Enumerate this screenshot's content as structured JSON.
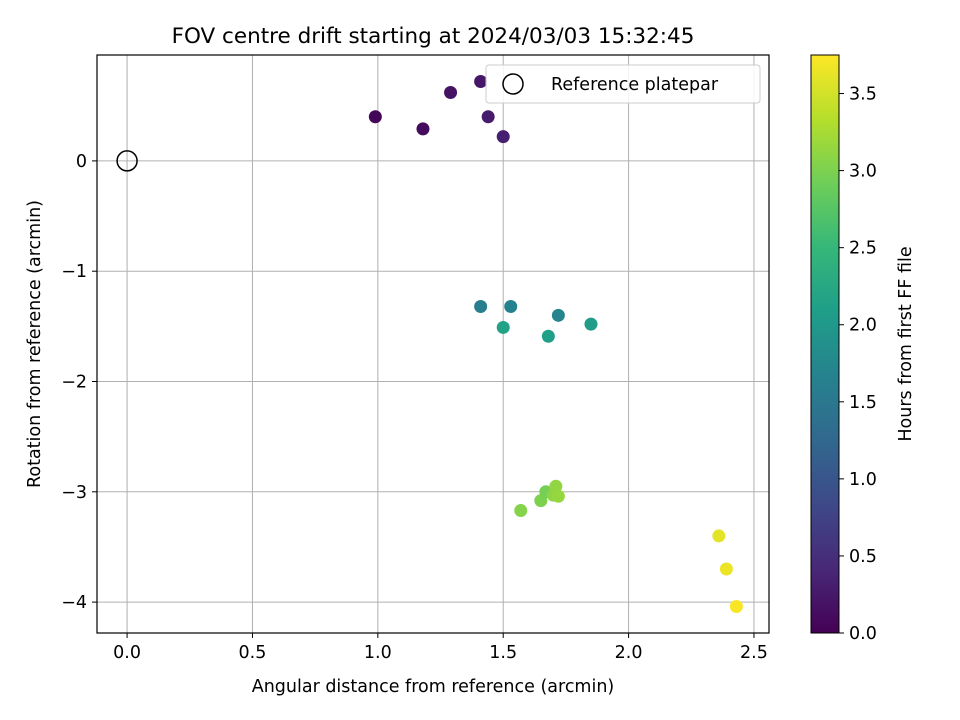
{
  "chart_data": {
    "type": "scatter",
    "title": "FOV centre drift starting at 2024/03/03 15:32:45",
    "xlabel": "Angular distance from reference (arcmin)",
    "ylabel": "Rotation from reference (arcmin)",
    "xlim": [
      -0.12,
      2.56
    ],
    "ylim": [
      -4.28,
      0.96
    ],
    "xticks": [
      0.0,
      0.5,
      1.0,
      1.5,
      2.0,
      2.5
    ],
    "xtick_labels": [
      "0.0",
      "0.5",
      "1.0",
      "1.5",
      "2.0",
      "2.5"
    ],
    "yticks": [
      0,
      -1,
      -2,
      -3,
      -4
    ],
    "ytick_labels": [
      "0",
      "−1",
      "−2",
      "−3",
      "−4"
    ],
    "grid": true,
    "legend": {
      "location": "upper right",
      "label": "Reference platepar"
    },
    "reference_point": {
      "x": 0.0,
      "y": 0.0
    },
    "points": [
      {
        "x": 0.99,
        "y": 0.4,
        "hours": 0.05
      },
      {
        "x": 1.18,
        "y": 0.29,
        "hours": 0.12
      },
      {
        "x": 1.29,
        "y": 0.62,
        "hours": 0.18
      },
      {
        "x": 1.41,
        "y": 0.72,
        "hours": 0.22
      },
      {
        "x": 1.44,
        "y": 0.4,
        "hours": 0.28
      },
      {
        "x": 1.5,
        "y": 0.22,
        "hours": 0.32
      },
      {
        "x": 1.41,
        "y": -1.32,
        "hours": 1.6
      },
      {
        "x": 1.53,
        "y": -1.32,
        "hours": 1.65
      },
      {
        "x": 1.72,
        "y": -1.4,
        "hours": 1.7
      },
      {
        "x": 1.5,
        "y": -1.51,
        "hours": 2.15
      },
      {
        "x": 1.68,
        "y": -1.59,
        "hours": 2.1
      },
      {
        "x": 1.85,
        "y": -1.48,
        "hours": 2.05
      },
      {
        "x": 1.57,
        "y": -3.17,
        "hours": 3.05
      },
      {
        "x": 1.65,
        "y": -3.08,
        "hours": 3.0
      },
      {
        "x": 1.67,
        "y": -3.0,
        "hours": 2.95
      },
      {
        "x": 1.7,
        "y": -3.03,
        "hours": 3.1
      },
      {
        "x": 1.71,
        "y": -2.95,
        "hours": 3.12
      },
      {
        "x": 1.72,
        "y": -3.04,
        "hours": 3.15
      },
      {
        "x": 2.36,
        "y": -3.4,
        "hours": 3.6
      },
      {
        "x": 2.39,
        "y": -3.7,
        "hours": 3.65
      },
      {
        "x": 2.43,
        "y": -4.04,
        "hours": 3.72
      }
    ],
    "colorbar": {
      "label": "Hours from first FF file",
      "min": 0.0,
      "max": 3.75,
      "ticks": [
        0.0,
        0.5,
        1.0,
        1.5,
        2.0,
        2.5,
        3.0,
        3.5
      ],
      "tick_labels": [
        "0.0",
        "0.5",
        "1.0",
        "1.5",
        "2.0",
        "2.5",
        "3.0",
        "3.5"
      ],
      "colormap": "viridis",
      "colormap_stops": [
        "#440154",
        "#482878",
        "#3e4989",
        "#31688e",
        "#26828e",
        "#1f9e89",
        "#35b779",
        "#6ece58",
        "#b5de2b",
        "#fde725"
      ]
    }
  }
}
